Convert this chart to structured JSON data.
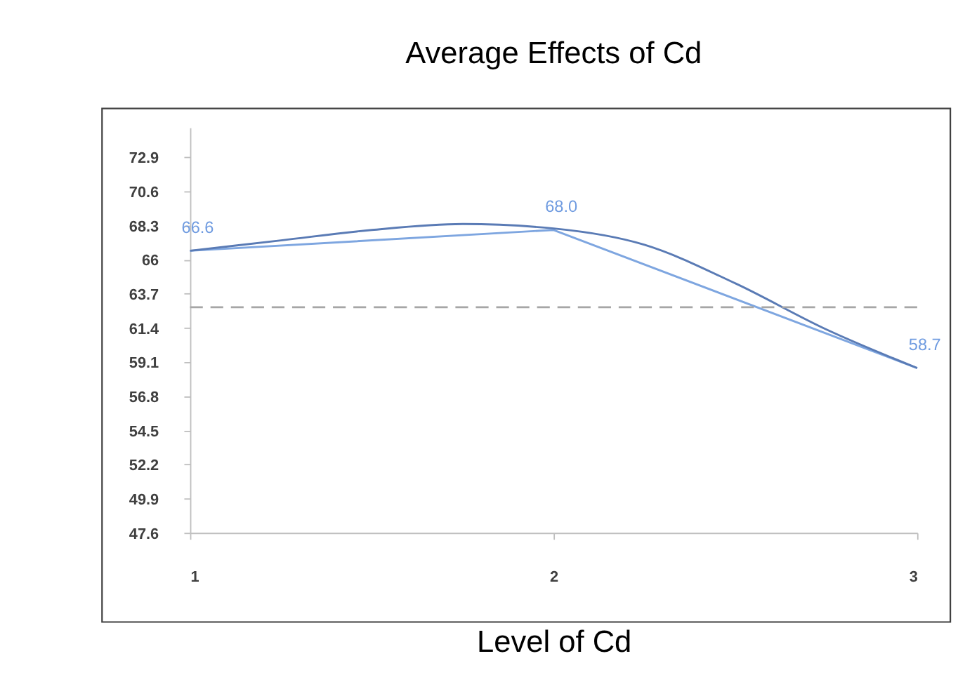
{
  "chart_data": {
    "type": "line",
    "title": "Average Effects of Cd",
    "xlabel": "Level of Cd",
    "x": [
      1,
      2,
      3
    ],
    "series": [
      {
        "color": "#7ea6e0",
        "values": [
          66.6,
          68.0,
          58.7
        ],
        "value_labels": [
          "66.6",
          "68.0",
          "58.7"
        ]
      },
      {
        "color": "#5a7bb5",
        "x": [
          1,
          1.25,
          1.5,
          1.75,
          2,
          2.25,
          2.5,
          2.75,
          3
        ],
        "values": [
          66.6,
          67.3,
          68.0,
          68.4,
          68.1,
          67.0,
          64.4,
          61.3,
          58.7
        ]
      }
    ],
    "xlim": [
      1,
      3
    ],
    "xticks": [
      1,
      2,
      3
    ],
    "ylim": [
      47.6,
      74.9
    ],
    "yticks": [
      47.6,
      49.9,
      52.2,
      54.5,
      56.8,
      59.1,
      61.4,
      63.7,
      66,
      68.3,
      70.6,
      72.9
    ],
    "ref_lines": [
      {
        "axis": "y",
        "value": 62.8,
        "color": "#a6a6a6",
        "line_style": "dashed"
      }
    ],
    "grid": false,
    "marker": "none",
    "line_style": "solid"
  }
}
